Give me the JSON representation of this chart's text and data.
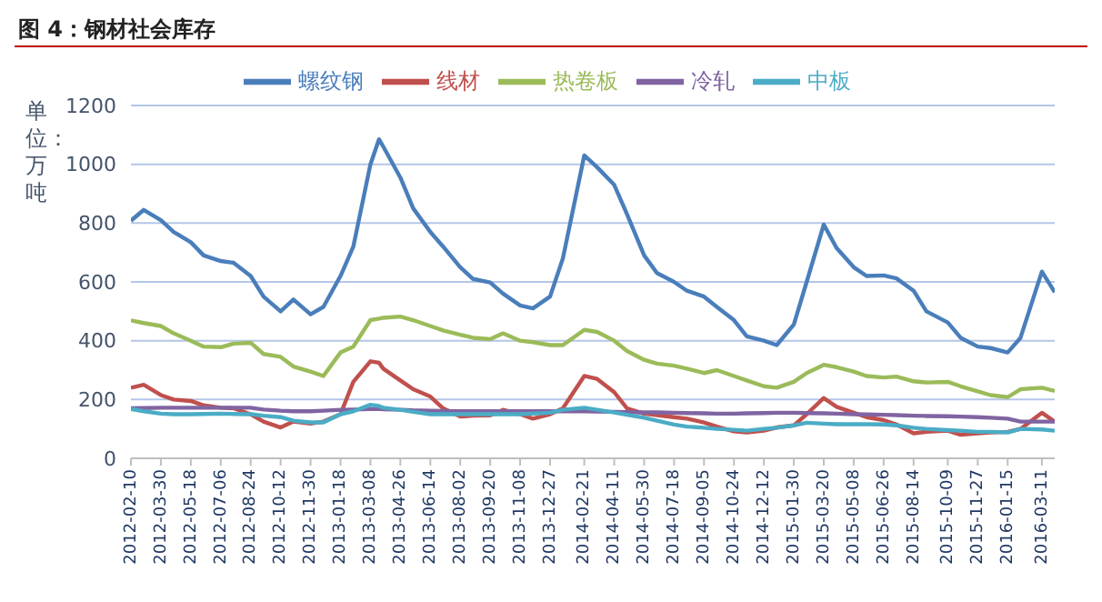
{
  "chart_data": {
    "type": "line",
    "title": "图 4：钢材社会库存",
    "ylabel": "单位：万吨",
    "x": [
      "2012-02-10",
      "2012-03-02",
      "2012-03-30",
      "2012-04-20",
      "2012-05-18",
      "2012-06-08",
      "2012-07-06",
      "2012-07-27",
      "2012-08-24",
      "2012-09-14",
      "2012-10-12",
      "2012-11-02",
      "2012-11-30",
      "2012-12-21",
      "2013-01-18",
      "2013-02-08",
      "2013-03-08",
      "2013-03-22",
      "2013-03-29",
      "2013-04-26",
      "2013-05-17",
      "2013-06-14",
      "2013-07-05",
      "2013-08-02",
      "2013-08-23",
      "2013-09-20",
      "2013-10-11",
      "2013-11-08",
      "2013-11-29",
      "2013-12-27",
      "2014-01-17",
      "2014-02-21",
      "2014-03-14",
      "2014-04-11",
      "2014-05-02",
      "2014-05-30",
      "2014-06-20",
      "2014-07-18",
      "2014-08-08",
      "2014-09-05",
      "2014-09-26",
      "2014-10-24",
      "2014-11-14",
      "2014-12-12",
      "2015-01-02",
      "2015-01-30",
      "2015-02-20",
      "2015-03-20",
      "2015-04-10",
      "2015-05-08",
      "2015-05-29",
      "2015-06-26",
      "2015-07-17",
      "2015-08-14",
      "2015-09-04",
      "2015-10-09",
      "2015-10-30",
      "2015-11-27",
      "2015-12-18",
      "2016-01-15",
      "2016-02-05",
      "2016-03-11",
      "2016-04-01"
    ],
    "series": [
      {
        "name": "螺纹钢",
        "color": "#4a7ebb",
        "values": [
          808,
          845,
          810,
          770,
          735,
          690,
          671,
          665,
          620,
          550,
          500,
          540,
          490,
          515,
          620,
          720,
          1000,
          1085,
          1060,
          955,
          850,
          770,
          720,
          650,
          610,
          598,
          560,
          520,
          510,
          550,
          680,
          1030,
          990,
          930,
          830,
          690,
          630,
          600,
          570,
          550,
          515,
          470,
          415,
          400,
          385,
          455,
          600,
          795,
          715,
          650,
          620,
          622,
          612,
          570,
          500,
          462,
          410,
          380,
          375,
          360,
          410,
          635,
          565
        ]
      },
      {
        "name": "线材",
        "color": "#c0504d",
        "values": [
          240,
          250,
          215,
          200,
          195,
          180,
          172,
          170,
          150,
          125,
          105,
          125,
          118,
          125,
          150,
          260,
          330,
          325,
          305,
          265,
          235,
          210,
          170,
          142,
          145,
          146,
          165,
          150,
          135,
          150,
          170,
          280,
          270,
          225,
          170,
          152,
          147,
          140,
          135,
          122,
          108,
          92,
          88,
          94,
          105,
          112,
          150,
          205,
          175,
          155,
          140,
          130,
          115,
          85,
          90,
          94,
          80,
          85,
          88,
          90,
          100,
          155,
          125
        ]
      },
      {
        "name": "热卷板",
        "color": "#9bbb59",
        "values": [
          469,
          460,
          450,
          425,
          400,
          380,
          378,
          390,
          393,
          355,
          345,
          312,
          295,
          280,
          360,
          380,
          470,
          475,
          478,
          482,
          470,
          450,
          435,
          420,
          410,
          405,
          425,
          400,
          395,
          385,
          385,
          437,
          430,
          400,
          365,
          335,
          322,
          315,
          305,
          290,
          300,
          280,
          265,
          245,
          240,
          260,
          290,
          318,
          310,
          295,
          280,
          275,
          278,
          262,
          258,
          260,
          245,
          228,
          215,
          208,
          235,
          240,
          229
        ]
      },
      {
        "name": "冷轧",
        "color": "#8064a2",
        "values": [
          170,
          171,
          172,
          172,
          172,
          172,
          172,
          172,
          172,
          166,
          162,
          160,
          160,
          162,
          165,
          166,
          168,
          168,
          167,
          165,
          163,
          162,
          161,
          160,
          160,
          160,
          160,
          160,
          160,
          160,
          160,
          160,
          159,
          158,
          157,
          156,
          156,
          155,
          154,
          153,
          152,
          152,
          153,
          154,
          155,
          155,
          154,
          153,
          152,
          150,
          149,
          148,
          147,
          145,
          144,
          143,
          142,
          140,
          138,
          135,
          125,
          125,
          125
        ]
      },
      {
        "name": "中板",
        "color": "#4bacc6",
        "values": [
          168,
          160,
          152,
          150,
          150,
          151,
          152,
          151,
          150,
          145,
          140,
          128,
          122,
          122,
          150,
          160,
          182,
          178,
          172,
          165,
          158,
          150,
          150,
          150,
          150,
          150,
          150,
          150,
          152,
          155,
          165,
          172,
          165,
          156,
          148,
          138,
          128,
          115,
          108,
          104,
          100,
          97,
          94,
          100,
          104,
          112,
          121,
          118,
          116,
          116,
          116,
          115,
          112,
          104,
          100,
          96,
          94,
          90,
          90,
          88,
          100,
          98,
          94
        ]
      }
    ],
    "xlim": [
      "2012-02-10",
      "2016-04-01"
    ],
    "xticks": [
      "2012-02-10",
      "2012-03-30",
      "2012-05-18",
      "2012-07-06",
      "2012-08-24",
      "2012-10-12",
      "2012-11-30",
      "2013-01-18",
      "2013-03-08",
      "2013-04-26",
      "2013-06-14",
      "2013-08-02",
      "2013-09-20",
      "2013-11-08",
      "2013-12-27",
      "2014-02-21",
      "2014-04-11",
      "2014-05-30",
      "2014-07-18",
      "2014-09-05",
      "2014-10-24",
      "2014-12-12",
      "2015-01-30",
      "2015-03-20",
      "2015-05-08",
      "2015-06-26",
      "2015-08-14",
      "2015-10-09",
      "2015-11-27",
      "2016-01-15",
      "2016-03-11"
    ],
    "ylim": [
      0,
      1200
    ],
    "yticks": [
      0,
      200,
      400,
      600,
      800,
      1000,
      1200
    ],
    "grid": "y",
    "legend": "top",
    "marker": "none",
    "line_style": "solid"
  }
}
